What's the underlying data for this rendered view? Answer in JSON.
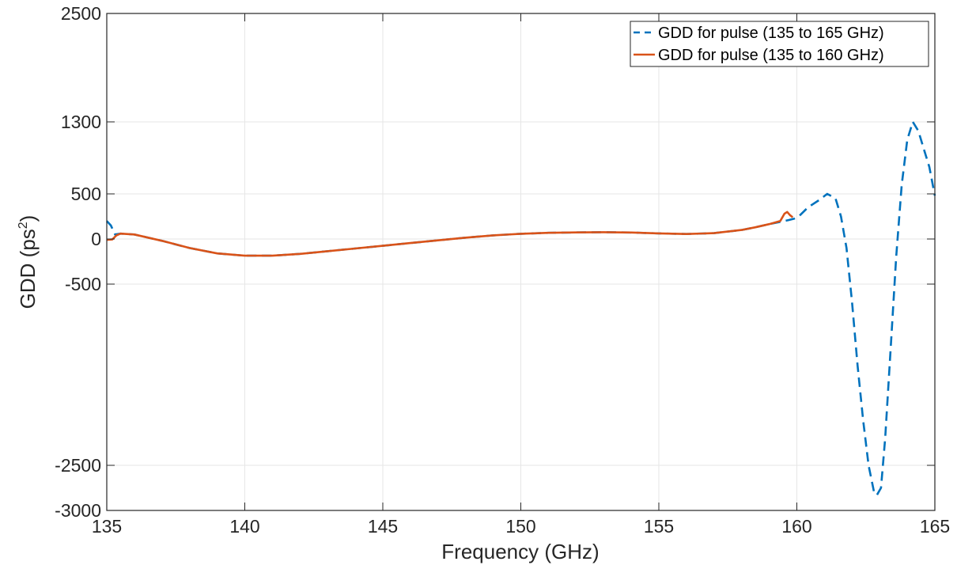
{
  "chart_data": {
    "type": "line",
    "xlabel": "Frequency (GHz)",
    "ylabel": {
      "main": "GDD (ps",
      "sup": "2",
      "close": ")"
    },
    "xlim": [
      135,
      165
    ],
    "ylim": [
      -3000,
      2500
    ],
    "y_scale": "piecewise",
    "x_ticks": [
      135,
      140,
      145,
      150,
      155,
      160,
      165
    ],
    "x_tick_labels": [
      "135",
      "140",
      "145",
      "150",
      "155",
      "160",
      "165"
    ],
    "y_ticks": [
      -3000,
      -2500,
      -500,
      0,
      500,
      1300,
      2500
    ],
    "y_tick_labels": [
      "-3000",
      "-2500",
      "-500",
      "0",
      "500",
      "1300",
      "2500"
    ],
    "grid": true,
    "legend_position": "top-right",
    "colors": {
      "blue": "#0072BD",
      "orange": "#D95319",
      "grid": "#e6e6e6",
      "axis": "#262626"
    },
    "series": [
      {
        "name": "GDD for pulse (135 to 165 GHz)",
        "style": "dashed",
        "color": "#0072BD",
        "x": [
          135.0,
          135.15,
          135.3,
          135.5,
          136.0,
          137.0,
          138.0,
          139.0,
          140.0,
          141.0,
          142.0,
          143.0,
          144.0,
          145.0,
          146.0,
          147.0,
          148.0,
          149.0,
          150.0,
          151.0,
          152.0,
          153.0,
          154.0,
          155.0,
          156.0,
          157.0,
          158.0,
          158.5,
          159.0,
          159.4,
          159.7,
          159.9,
          160.1,
          160.4,
          160.8,
          161.1,
          161.4,
          161.6,
          161.8,
          162.0,
          162.2,
          162.4,
          162.6,
          162.8,
          162.9,
          163.05,
          163.2,
          163.4,
          163.6,
          163.8,
          164.0,
          164.2,
          164.4,
          164.6,
          164.8,
          165.0
        ],
        "y": [
          200,
          150,
          50,
          60,
          50,
          -20,
          -100,
          -160,
          -185,
          -185,
          -165,
          -135,
          -105,
          -75,
          -45,
          -15,
          15,
          40,
          58,
          68,
          73,
          75,
          72,
          62,
          55,
          65,
          100,
          130,
          165,
          190,
          210,
          225,
          260,
          350,
          430,
          500,
          450,
          250,
          -100,
          -700,
          -1400,
          -2000,
          -2500,
          -2800,
          -2830,
          -2750,
          -2200,
          -1200,
          -200,
          600,
          1100,
          1300,
          1200,
          1000,
          800,
          480
        ]
      },
      {
        "name": "GDD for pulse (135 to 160 GHz)",
        "style": "solid",
        "color": "#D95319",
        "x": [
          135.0,
          135.2,
          135.35,
          135.5,
          136.0,
          137.0,
          138.0,
          139.0,
          140.0,
          141.0,
          142.0,
          143.0,
          144.0,
          145.0,
          146.0,
          147.0,
          148.0,
          149.0,
          150.0,
          151.0,
          152.0,
          153.0,
          154.0,
          155.0,
          156.0,
          157.0,
          158.0,
          158.5,
          159.0,
          159.4,
          159.55,
          159.65,
          159.75,
          159.85
        ],
        "y": [
          -10,
          -5,
          40,
          60,
          50,
          -20,
          -100,
          -160,
          -185,
          -185,
          -165,
          -135,
          -105,
          -75,
          -45,
          -15,
          15,
          40,
          58,
          68,
          73,
          75,
          72,
          62,
          55,
          65,
          100,
          130,
          165,
          200,
          280,
          300,
          265,
          240
        ]
      }
    ]
  }
}
